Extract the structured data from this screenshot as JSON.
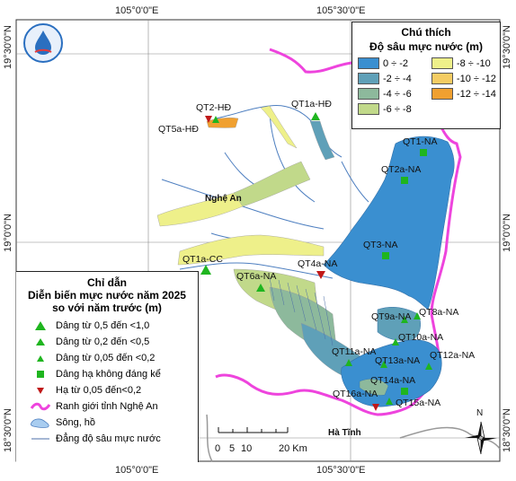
{
  "coords": {
    "top": [
      "105°0'0\"E",
      "105°30'0\"E"
    ],
    "bottom": [
      "105°0'0\"E",
      "105°30'0\"E"
    ],
    "left": [
      "19°30'0\"N",
      "19°0'0\"N",
      "18°30'0\"N"
    ],
    "right": [
      "19°30'0\"N",
      "19°0'0\"N",
      "18°30'0\"N"
    ]
  },
  "depth_legend": {
    "title1": "Chú thích",
    "title2": "Độ sâu mực nước (m)",
    "items": [
      {
        "label": "0 ÷ -2",
        "color": "#3a8fd0"
      },
      {
        "label": "-8 ÷ -10",
        "color": "#eef08a"
      },
      {
        "label": "-2 ÷ -4",
        "color": "#5fa0b8"
      },
      {
        "label": "-10 ÷ -12",
        "color": "#f4cc63"
      },
      {
        "label": "-4 ÷ -6",
        "color": "#8db99c"
      },
      {
        "label": "-12 ÷ -14",
        "color": "#f0a030"
      },
      {
        "label": "-6 ÷ -8",
        "color": "#c1d98a"
      }
    ]
  },
  "change_legend": {
    "title1": "Chỉ dẫn",
    "title2": "Diễn biến mực nước năm 2025",
    "title3": "so với năm trước (m)",
    "items": [
      {
        "label": "Dâng từ 0,5 đến <1,0",
        "icon": "triangle-up-large-icon"
      },
      {
        "label": "Dâng từ 0,2 đến <0,5",
        "icon": "triangle-up-medium-icon"
      },
      {
        "label": "Dâng từ 0,05 đến <0,2",
        "icon": "triangle-up-small-icon"
      },
      {
        "label": "Dâng hạ không đáng kể",
        "icon": "square-green-icon"
      },
      {
        "label": "Hạ từ 0,05 đến<0,2",
        "icon": "triangle-down-red-icon"
      },
      {
        "label": "Ranh giới tỉnh Nghệ An",
        "icon": "boundary-line-icon"
      },
      {
        "label": "Sông, hồ",
        "icon": "river-lake-icon"
      },
      {
        "label": "Đẳng độ sâu mực nước",
        "icon": "contour-line-icon"
      }
    ]
  },
  "colors": {
    "triangle_up": "#1fb51f",
    "square": "#1fb51f",
    "triangle_down": "#c01818",
    "boundary": "#ee44dd"
  },
  "places": {
    "nghe_an": "Nghệ An",
    "ha_tinh": "Hà Tĩnh"
  },
  "stations": [
    {
      "id": "QT2-HĐ",
      "marker": "triangle-down-red"
    },
    {
      "id": "QT5a-HĐ",
      "marker": "triangle-up-medium"
    },
    {
      "id": "QT1a-HĐ",
      "marker": "triangle-up-medium"
    },
    {
      "id": "QT1-NA",
      "marker": "square-green"
    },
    {
      "id": "QT2a-NA",
      "marker": "square-green"
    },
    {
      "id": "QT3-NA",
      "marker": "square-green"
    },
    {
      "id": "QT1a-CC",
      "marker": "triangle-up-large"
    },
    {
      "id": "QT6a-NA",
      "marker": "triangle-up-medium"
    },
    {
      "id": "QT4a-NA",
      "marker": "triangle-down-red"
    },
    {
      "id": "QT8a-NA",
      "marker": "triangle-up-small"
    },
    {
      "id": "QT9a-NA",
      "marker": "triangle-up-small"
    },
    {
      "id": "QT10a-NA",
      "marker": "triangle-up-small"
    },
    {
      "id": "QT11a-NA",
      "marker": "triangle-up-small"
    },
    {
      "id": "QT12a-NA",
      "marker": "triangle-up-small"
    },
    {
      "id": "QT13a-NA",
      "marker": "triangle-up-small"
    },
    {
      "id": "QT14a-NA",
      "marker": "square-green"
    },
    {
      "id": "QT15a-NA",
      "marker": "triangle-up-small"
    },
    {
      "id": "QT16a-NA",
      "marker": "triangle-down-red"
    }
  ],
  "scale_bar": {
    "labels": [
      "0",
      "5",
      "10",
      "20 Km"
    ]
  },
  "north": {
    "label": "N"
  }
}
